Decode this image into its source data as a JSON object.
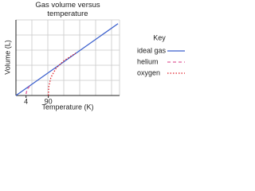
{
  "chart_data": {
    "type": "line",
    "title": "Gas volume versus temperature",
    "x_label": "Temperature (K)",
    "y_label": "Volume (L)",
    "xlim": [
      -35,
      365
    ],
    "ylim": [
      0,
      100
    ],
    "xticks": [
      4,
      90
    ],
    "grid": true,
    "legend_title": "Key",
    "legend_position": "right",
    "series": [
      {
        "name": "ideal gas",
        "color": "#3a5fcd",
        "style": "solid",
        "x": [
          -35,
          359
        ],
        "values": [
          0,
          95
        ]
      },
      {
        "name": "helium",
        "color": "#e0609a",
        "style": "dashed",
        "x": [
          4,
          8,
          20
        ],
        "values": [
          2,
          8,
          13
        ]
      },
      {
        "name": "oxygen",
        "color": "#e0202a",
        "style": "dotted",
        "x": [
          90,
          92,
          100,
          120,
          150,
          196
        ],
        "values": [
          0,
          12,
          24,
          36,
          46,
          56
        ]
      }
    ]
  }
}
